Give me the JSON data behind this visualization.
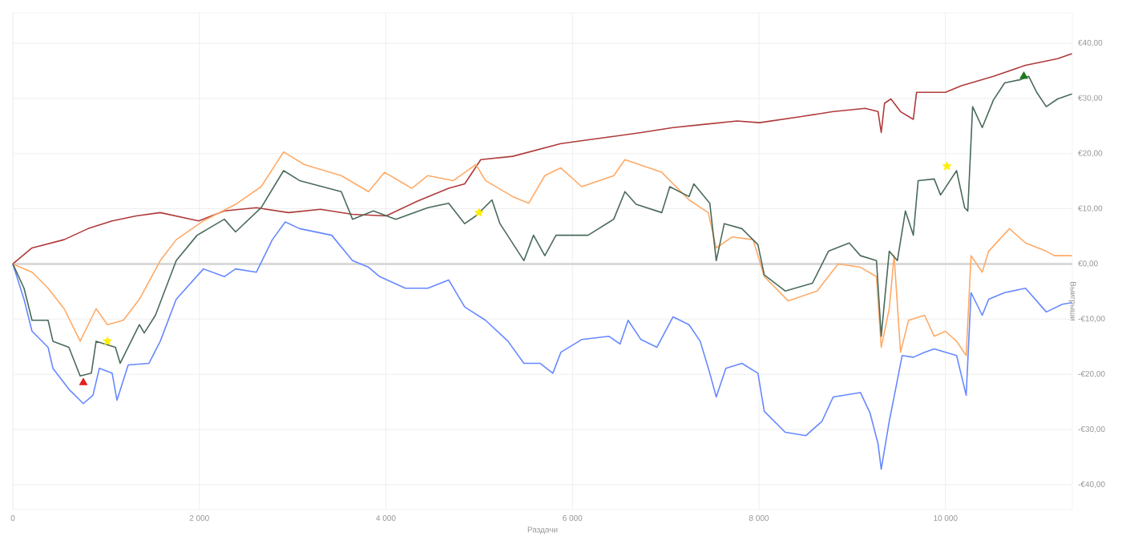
{
  "chart_data": {
    "type": "line",
    "xlabel": "Раздачи",
    "ylabel": "Выигрыши",
    "xlim": [
      0,
      11360
    ],
    "ylim": [
      -44.5,
      45.5
    ],
    "xticks": [
      0,
      {
        "value": 2000,
        "label": "2 000"
      },
      {
        "value": 4000,
        "label": "4 000"
      },
      {
        "value": 6000,
        "label": "6 000"
      },
      {
        "value": 8000,
        "label": "8 000"
      },
      {
        "value": 10000,
        "label": "10 000"
      }
    ],
    "yticks": [
      {
        "value": -40,
        "label": "-€40,00"
      },
      {
        "value": -30,
        "label": "-€30,00"
      },
      {
        "value": -20,
        "label": "-€20,00"
      },
      {
        "value": -10,
        "label": "-€10,00"
      },
      {
        "value": 0,
        "label": "€0,00"
      },
      {
        "value": 10,
        "label": "€10,00"
      },
      {
        "value": 20,
        "label": "€20,00"
      },
      {
        "value": 30,
        "label": "€30,00"
      },
      {
        "value": 40,
        "label": "€40,00"
      }
    ],
    "grid": true,
    "marker": "none",
    "line_style": "solid",
    "ref_lines": [
      {
        "axis": "y",
        "value": 0,
        "label": null,
        "color": "#d9d9d9"
      }
    ],
    "series": [
      {
        "color": "#b03a3a",
        "x": [
          0,
          206,
          550,
          807,
          1065,
          1323,
          1581,
          1993,
          2268,
          2611,
          2955,
          3299,
          3642,
          4003,
          4329,
          4673,
          4845,
          5017,
          5360,
          5876,
          6391,
          6735,
          7078,
          7422,
          7765,
          8006,
          8453,
          8796,
          9140,
          9277,
          9311,
          9346,
          9415,
          9518,
          9655,
          9690,
          9999,
          10171,
          10514,
          10858,
          11202,
          11356
        ],
        "values": [
          0,
          2.9,
          4.4,
          6.4,
          7.8,
          8.7,
          9.3,
          7.8,
          9.6,
          10.2,
          9.3,
          9.9,
          9.0,
          8.7,
          11.3,
          13.7,
          14.5,
          18.9,
          19.5,
          21.8,
          23.0,
          23.8,
          24.7,
          25.3,
          25.9,
          25.6,
          26.7,
          27.6,
          28.2,
          27.6,
          23.8,
          29.1,
          29.9,
          27.6,
          26.2,
          31.1,
          31.1,
          32.3,
          34.0,
          36.0,
          37.2,
          38.1
        ]
      },
      {
        "color": "#ffaa66",
        "x": [
          0,
          206,
          378,
          550,
          722,
          893,
          1014,
          1185,
          1357,
          1581,
          1752,
          2044,
          2388,
          2663,
          2903,
          3127,
          3522,
          3814,
          3986,
          4278,
          4450,
          4725,
          4965,
          5068,
          5360,
          5532,
          5704,
          5876,
          6099,
          6443,
          6563,
          6958,
          7250,
          7456,
          7542,
          7714,
          7937,
          8057,
          8315,
          8624,
          8848,
          9088,
          9260,
          9311,
          9397,
          9449,
          9518,
          9604,
          9776,
          9879,
          9999,
          10119,
          10222,
          10274,
          10394,
          10463,
          10686,
          10858,
          11081,
          11167,
          11356
        ],
        "values": [
          0,
          -1.5,
          -4.4,
          -8.1,
          -14.0,
          -8.1,
          -11.0,
          -10.2,
          -6.4,
          0.6,
          4.4,
          7.8,
          10.8,
          14.0,
          20.3,
          18.0,
          16.0,
          13.1,
          16.6,
          13.7,
          16.0,
          15.1,
          18.0,
          15.1,
          12.2,
          11.0,
          16.0,
          17.4,
          14.0,
          16.0,
          18.9,
          16.6,
          11.6,
          9.3,
          2.9,
          4.9,
          4.4,
          -2.3,
          -6.7,
          -4.9,
          0,
          -0.6,
          -2.3,
          -15.1,
          -8.1,
          1.5,
          -16.0,
          -10.2,
          -9.3,
          -13.1,
          -12.2,
          -14.0,
          -16.6,
          1.5,
          -1.5,
          2.3,
          6.4,
          3.8,
          2.3,
          1.5,
          1.5
        ]
      },
      {
        "color": "#6688ff",
        "x": [
          0,
          120,
          206,
          378,
          430,
          601,
          756,
          859,
          928,
          1065,
          1117,
          1237,
          1460,
          1581,
          1752,
          2044,
          2268,
          2388,
          2611,
          2783,
          2921,
          3075,
          3419,
          3642,
          3814,
          3934,
          4209,
          4450,
          4673,
          4845,
          5068,
          5309,
          5480,
          5652,
          5790,
          5876,
          6099,
          6391,
          6511,
          6597,
          6735,
          6906,
          7078,
          7250,
          7370,
          7473,
          7542,
          7645,
          7817,
          7989,
          8057,
          8281,
          8504,
          8676,
          8796,
          9088,
          9191,
          9277,
          9311,
          9397,
          9449,
          9535,
          9655,
          9776,
          9879,
          10119,
          10222,
          10274,
          10394,
          10463,
          10634,
          10858,
          11081,
          11253,
          11356
        ],
        "values": [
          0,
          -6.4,
          -12.2,
          -15.1,
          -18.9,
          -22.7,
          -25.3,
          -23.8,
          -18.9,
          -19.8,
          -24.7,
          -18.3,
          -18.0,
          -14.0,
          -6.4,
          -0.9,
          -2.3,
          -0.9,
          -1.5,
          4.4,
          7.6,
          6.4,
          5.2,
          0.6,
          -0.6,
          -2.3,
          -4.4,
          -4.4,
          -2.9,
          -7.8,
          -10.2,
          -14.0,
          -18.0,
          -18.0,
          -19.8,
          -16.0,
          -13.7,
          -13.1,
          -14.5,
          -10.2,
          -13.7,
          -15.1,
          -9.6,
          -11.0,
          -14.0,
          -19.8,
          -24.1,
          -18.9,
          -18.0,
          -19.8,
          -26.7,
          -30.5,
          -31.1,
          -28.5,
          -24.1,
          -23.3,
          -27.0,
          -32.6,
          -37.2,
          -28.5,
          -24.1,
          -16.6,
          -16.9,
          -16.0,
          -15.4,
          -16.6,
          -23.8,
          -5.2,
          -9.3,
          -6.4,
          -5.2,
          -4.4,
          -8.7,
          -7.3,
          -7.0
        ]
      },
      {
        "color": "#4a6b5a",
        "x": [
          0,
          120,
          206,
          378,
          430,
          601,
          722,
          842,
          893,
          1100,
          1151,
          1357,
          1409,
          1529,
          1752,
          1976,
          2268,
          2388,
          2663,
          2903,
          3075,
          3522,
          3642,
          3866,
          4106,
          4450,
          4673,
          4845,
          4965,
          5137,
          5223,
          5480,
          5583,
          5704,
          5824,
          6168,
          6443,
          6563,
          6683,
          6958,
          7044,
          7250,
          7302,
          7473,
          7542,
          7628,
          7817,
          7989,
          8057,
          8281,
          8573,
          8745,
          8968,
          9088,
          9260,
          9311,
          9397,
          9484,
          9570,
          9655,
          9707,
          9879,
          9947,
          10119,
          10205,
          10239,
          10291,
          10394,
          10514,
          10634,
          10806,
          10892,
          10978,
          11081,
          11202,
          11356
        ],
        "values": [
          0,
          -4.4,
          -10.2,
          -10.2,
          -14.0,
          -15.1,
          -20.3,
          -19.8,
          -14.0,
          -15.1,
          -18.0,
          -11.0,
          -12.5,
          -9.3,
          0.6,
          5.2,
          8.1,
          5.8,
          10.2,
          16.9,
          15.1,
          13.1,
          8.1,
          9.6,
          8.1,
          10.2,
          11.0,
          7.3,
          8.7,
          11.6,
          7.3,
          0.6,
          5.2,
          1.5,
          5.2,
          5.2,
          8.1,
          13.1,
          10.8,
          9.3,
          14.0,
          12.2,
          14.5,
          11.0,
          0.6,
          7.3,
          6.4,
          3.5,
          -2.0,
          -4.9,
          -3.5,
          2.3,
          3.8,
          1.5,
          0.6,
          -13.1,
          2.3,
          0.6,
          9.6,
          5.2,
          15.1,
          15.4,
          12.5,
          16.9,
          10.2,
          9.6,
          28.5,
          24.7,
          29.7,
          32.8,
          33.4,
          34.0,
          31.1,
          28.5,
          29.9,
          30.8
        ]
      },
      {
        "type": "scatter",
        "marker": "star",
        "color": "#ffee00",
        "x": [
          1014,
          5000,
          10016
        ],
        "values": [
          -14.0,
          9.3,
          17.7
        ]
      },
      {
        "type": "scatter",
        "marker": "triangle",
        "color": "#e02020",
        "x": [
          756
        ],
        "values": [
          -21.5
        ]
      },
      {
        "type": "scatter",
        "marker": "triangle",
        "color": "#1a7a1a",
        "x": [
          10840
        ],
        "values": [
          34.0
        ]
      }
    ]
  }
}
